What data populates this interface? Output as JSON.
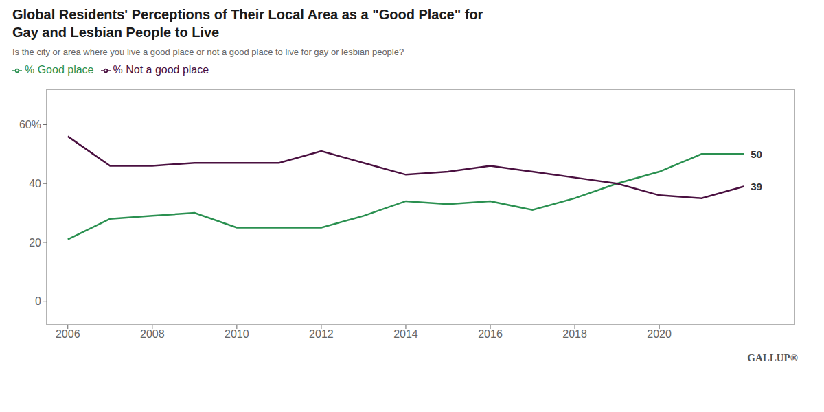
{
  "chart_data": {
    "type": "line",
    "title": "Global Residents' Perceptions of Their Local Area as a \"Good Place\" for\nGay and Lesbian People to Live",
    "subtitle": "Is the city or area where you live a good place or not a good place to live for gay or lesbian people?",
    "x": [
      2006,
      2007,
      2008,
      2009,
      2010,
      2011,
      2012,
      2013,
      2014,
      2015,
      2016,
      2017,
      2018,
      2019,
      2020,
      2021,
      2022
    ],
    "series": [
      {
        "name": "% Good place",
        "color": "#2a9050",
        "values": [
          21,
          28,
          29,
          30,
          25,
          25,
          25,
          29,
          34,
          33,
          34,
          31,
          35,
          40,
          44,
          50,
          50
        ]
      },
      {
        "name": "% Not a good place",
        "color": "#4a1040",
        "values": [
          56,
          46,
          46,
          47,
          47,
          47,
          51,
          47,
          43,
          44,
          46,
          44,
          42,
          40,
          36,
          35,
          39
        ]
      }
    ],
    "xlim": [
      2005.5,
      2023.2
    ],
    "xticks": [
      2006,
      2008,
      2010,
      2012,
      2014,
      2016,
      2018,
      2020
    ],
    "ylim": [
      -8,
      72
    ],
    "yticks": [
      0,
      20,
      40,
      {
        "value": 60,
        "label": "60%"
      }
    ],
    "grid": false,
    "legend": "top-left",
    "annotations": [
      {
        "text": "50",
        "x": 2022,
        "y": 50
      },
      {
        "text": "39",
        "x": 2022,
        "y": 39
      },
      {
        "text": "GALLUP®"
      }
    ]
  }
}
